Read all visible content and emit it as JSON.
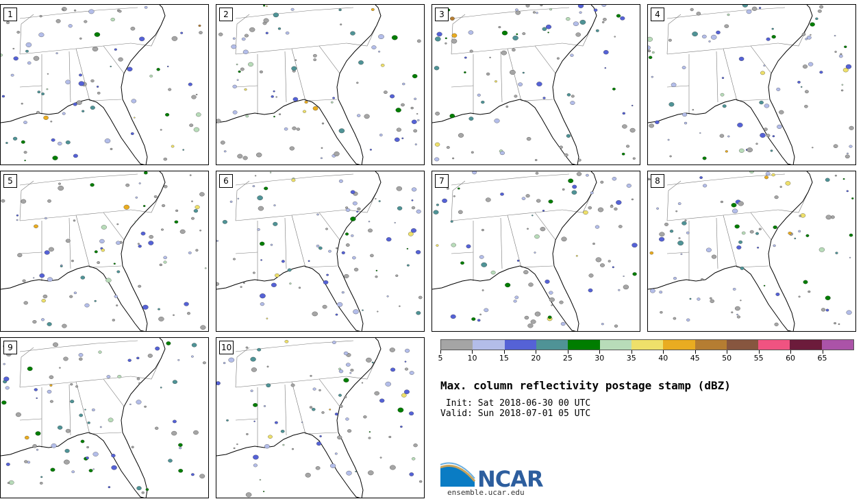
{
  "panels": [
    {
      "label": "1"
    },
    {
      "label": "2"
    },
    {
      "label": "3"
    },
    {
      "label": "4"
    },
    {
      "label": "5"
    },
    {
      "label": "6"
    },
    {
      "label": "7"
    },
    {
      "label": "8"
    },
    {
      "label": "9"
    },
    {
      "label": "10"
    }
  ],
  "colorbar": {
    "colors": [
      "#a5a5a5",
      "#b3bde9",
      "#5562d6",
      "#4f9396",
      "#007d00",
      "#b8dcb9",
      "#eee06a",
      "#e9ac21",
      "#b57d32",
      "#87563f",
      "#f05381",
      "#6c1b3b",
      "#ab53a8"
    ],
    "tick_labels": [
      "5",
      "10",
      "15",
      "20",
      "25",
      "30",
      "35",
      "40",
      "45",
      "50",
      "55",
      "60",
      "65"
    ]
  },
  "title": "Max. column reflectivity postage stamp (dBZ)",
  "init_line": " Init: Sat 2018-06-30 00 UTC",
  "valid_line": "Valid: Sun 2018-07-01 05 UTC",
  "logo": {
    "text": "NCAR",
    "site": "ensemble.ucar.edu"
  }
}
